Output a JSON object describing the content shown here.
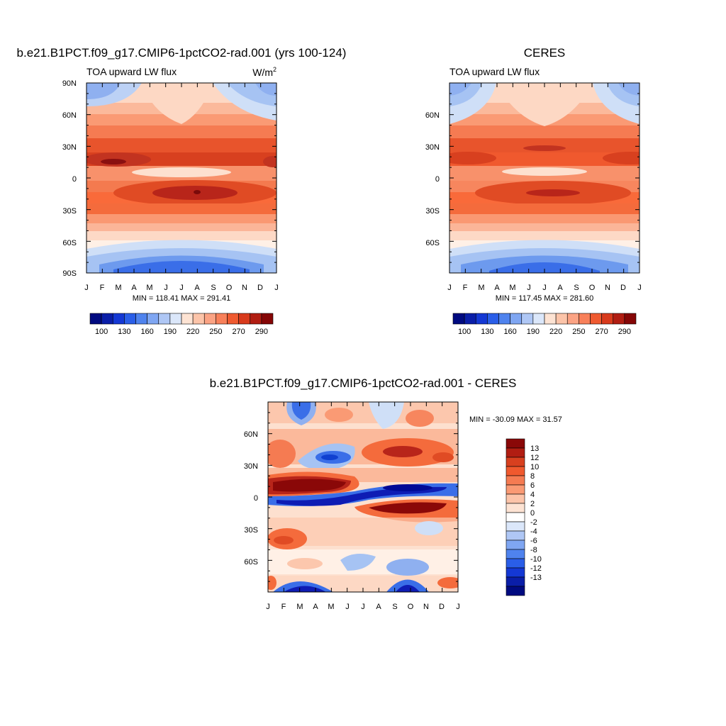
{
  "chart_data": [
    {
      "type": "heatmap",
      "title": "b.e21.B1PCT.f09_g17.CMIP6-1pctCO2-rad.001 (yrs 100-124)",
      "subtitle": "TOA upward LW flux",
      "units": "W/m",
      "units_sup": "2",
      "stats": "MIN = 118.41 MAX = 291.41",
      "x_ticks": [
        "J",
        "F",
        "M",
        "A",
        "M",
        "J",
        "J",
        "A",
        "S",
        "O",
        "N",
        "D",
        "J"
      ],
      "y_ticks": [
        "90N",
        "60N",
        "30N",
        "0",
        "30S",
        "60S",
        "90S"
      ],
      "ylim": [
        -90,
        90
      ],
      "colorbar_ticks": [
        "100",
        "130",
        "160",
        "190",
        "220",
        "250",
        "270",
        "290"
      ],
      "colorscale": "blue-white-red"
    },
    {
      "type": "heatmap",
      "title": "CERES",
      "subtitle": "TOA upward LW flux",
      "stats": "MIN = 117.45 MAX = 281.60",
      "x_ticks": [
        "J",
        "F",
        "M",
        "A",
        "M",
        "J",
        "J",
        "A",
        "S",
        "O",
        "N",
        "D",
        "J"
      ],
      "y_ticks": [
        "60N",
        "30N",
        "0",
        "30S",
        "60S"
      ],
      "ylim": [
        -90,
        90
      ],
      "colorbar_ticks": [
        "100",
        "130",
        "160",
        "190",
        "220",
        "250",
        "270",
        "290"
      ],
      "colorscale": "blue-white-red"
    },
    {
      "type": "heatmap",
      "title": "b.e21.B1PCT.f09_g17.CMIP6-1pctCO2-rad.001 - CERES",
      "stats": "MIN = -30.09 MAX =  31.57",
      "x_ticks": [
        "J",
        "F",
        "M",
        "A",
        "M",
        "J",
        "J",
        "A",
        "S",
        "O",
        "N",
        "D",
        "J"
      ],
      "y_ticks": [
        "60N",
        "30N",
        "0",
        "30S",
        "60S"
      ],
      "ylim": [
        -90,
        90
      ],
      "colorbar_ticks": [
        "13",
        "12",
        "10",
        "8",
        "6",
        "4",
        "2",
        "0",
        "-2",
        "-4",
        "-6",
        "-8",
        "-10",
        "-12",
        "-13"
      ],
      "colorscale": "diverging"
    }
  ]
}
